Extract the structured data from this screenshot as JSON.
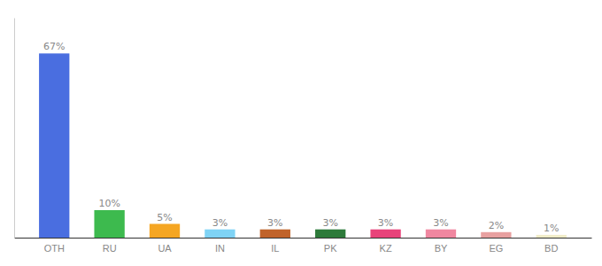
{
  "chart_data": {
    "type": "bar",
    "categories": [
      "OTH",
      "RU",
      "UA",
      "IN",
      "IL",
      "PK",
      "KZ",
      "BY",
      "EG",
      "BD"
    ],
    "values": [
      67,
      10,
      5,
      3,
      3,
      3,
      3,
      3,
      2,
      1
    ],
    "value_labels": [
      "67%",
      "10%",
      "5%",
      "3%",
      "3%",
      "3%",
      "3%",
      "3%",
      "2%",
      "1%"
    ],
    "colors": [
      "#4a6ee0",
      "#3dba4e",
      "#f5a623",
      "#7fd3f5",
      "#c0632a",
      "#2d7a3a",
      "#e8437a",
      "#f087a0",
      "#e8a0a0",
      "#f0ecc8"
    ],
    "ylim": [
      0,
      80
    ],
    "data_labels": true,
    "tick_labels": "x",
    "grid": false
  }
}
